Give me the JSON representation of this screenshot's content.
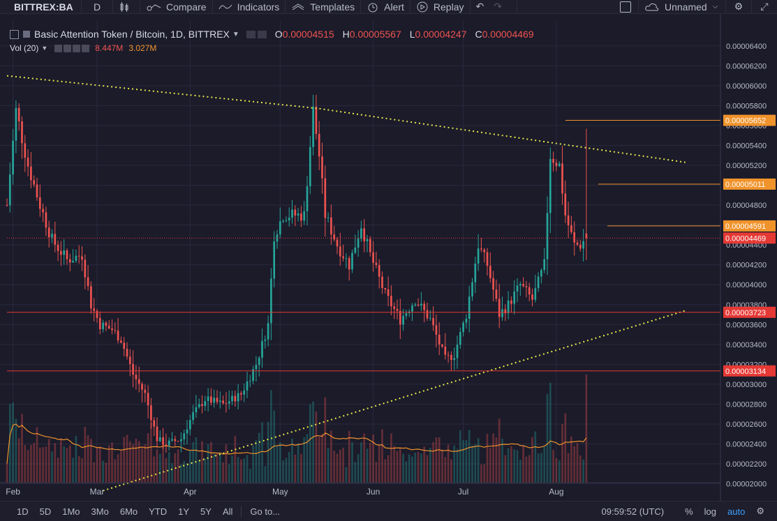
{
  "toolbar": {
    "symbol": "BITTREX:BA",
    "interval": "D",
    "compare_label": "Compare",
    "indicators_label": "Indicators",
    "templates_label": "Templates",
    "alert_label": "Alert",
    "replay_label": "Replay",
    "layout_name": "Unnamed"
  },
  "legend": {
    "title": "Basic Attention Token / Bitcoin, 1D, BITTREX",
    "o_label": "O",
    "o_value": "0.00004515",
    "h_label": "H",
    "h_value": "0.00005567",
    "l_label": "L",
    "l_value": "0.00004247",
    "c_label": "C",
    "c_value": "0.00004469",
    "vol_label": "Vol (20)",
    "vol_value": "8.447M",
    "vol_ma_value": "3.027M"
  },
  "bottombar": {
    "ranges": [
      "1D",
      "5D",
      "1Mo",
      "3Mo",
      "6Mo",
      "YTD",
      "1Y",
      "5Y",
      "All"
    ],
    "goto_label": "Go to...",
    "time": "09:59:52 (UTC)",
    "percent_label": "%",
    "log_label": "log",
    "auto_label": "auto"
  },
  "colors": {
    "background": "#1b1b2a",
    "grid": "#2a2a3e",
    "up": "#26a69a",
    "down": "#ef5350",
    "trendline": "#e8e84a",
    "horizontal_orange": "#f0932b",
    "horizontal_red": "#e53935",
    "volume_ma": "#f0932b"
  },
  "chart_data": {
    "type": "candlestick",
    "title": "Basic Attention Token / Bitcoin, 1D, BITTREX",
    "x_tick_labels": [
      "Feb",
      "Mar",
      "Apr",
      "May",
      "Jun",
      "Jul",
      "Aug"
    ],
    "y_tick_labels": [
      "0.00002000",
      "0.00002200",
      "0.00002400",
      "0.00002600",
      "0.00002800",
      "0.00003000",
      "0.00003200",
      "0.00003400",
      "0.00003600",
      "0.00003800",
      "0.00004000",
      "0.00004200",
      "0.00004400",
      "0.00004600",
      "0.00004800",
      "0.00005000",
      "0.00005200",
      "0.00005400",
      "0.00005600",
      "0.00005800",
      "0.00006000",
      "0.00006200",
      "0.00006400"
    ],
    "ylim": [
      1.92e-05,
      6.63e-05
    ],
    "xlim_days": [
      0,
      200
    ],
    "month_ticks_day": [
      2,
      30,
      61,
      91,
      122,
      152,
      183
    ],
    "close_anchors": [
      {
        "day": 0,
        "close": 4.8e-05
      },
      {
        "day": 3,
        "close": 5.75e-05
      },
      {
        "day": 7,
        "close": 5.2e-05
      },
      {
        "day": 11,
        "close": 4.8e-05
      },
      {
        "day": 15,
        "close": 4.45e-05
      },
      {
        "day": 20,
        "close": 4.25e-05
      },
      {
        "day": 25,
        "close": 4.3e-05
      },
      {
        "day": 28,
        "close": 3.8e-05
      },
      {
        "day": 31,
        "close": 3.6e-05
      },
      {
        "day": 35,
        "close": 3.55e-05
      },
      {
        "day": 38,
        "close": 3.45e-05
      },
      {
        "day": 42,
        "close": 3.1e-05
      },
      {
        "day": 46,
        "close": 2.9e-05
      },
      {
        "day": 50,
        "close": 2.45e-05
      },
      {
        "day": 53,
        "close": 2.4e-05
      },
      {
        "day": 58,
        "close": 2.45e-05
      },
      {
        "day": 62,
        "close": 2.7e-05
      },
      {
        "day": 66,
        "close": 2.85e-05
      },
      {
        "day": 72,
        "close": 2.8e-05
      },
      {
        "day": 78,
        "close": 2.9e-05
      },
      {
        "day": 83,
        "close": 3.2e-05
      },
      {
        "day": 87,
        "close": 3.6e-05
      },
      {
        "day": 89,
        "close": 4.5e-05
      },
      {
        "day": 92,
        "close": 4.7e-05
      },
      {
        "day": 95,
        "close": 4.7e-05
      },
      {
        "day": 99,
        "close": 4.7e-05
      },
      {
        "day": 102,
        "close": 5.75e-05
      },
      {
        "day": 104,
        "close": 5.3e-05
      },
      {
        "day": 106,
        "close": 4.7e-05
      },
      {
        "day": 110,
        "close": 4.4e-05
      },
      {
        "day": 114,
        "close": 4.2e-05
      },
      {
        "day": 118,
        "close": 4.6e-05
      },
      {
        "day": 121,
        "close": 4.3e-05
      },
      {
        "day": 126,
        "close": 3.9e-05
      },
      {
        "day": 131,
        "close": 3.65e-05
      },
      {
        "day": 136,
        "close": 3.85e-05
      },
      {
        "day": 141,
        "close": 3.65e-05
      },
      {
        "day": 146,
        "close": 3.25e-05
      },
      {
        "day": 149,
        "close": 3.3e-05
      },
      {
        "day": 153,
        "close": 3.7e-05
      },
      {
        "day": 157,
        "close": 4.4e-05
      },
      {
        "day": 160,
        "close": 4.2e-05
      },
      {
        "day": 164,
        "close": 3.7e-05
      },
      {
        "day": 167,
        "close": 3.8e-05
      },
      {
        "day": 171,
        "close": 4e-05
      },
      {
        "day": 175,
        "close": 3.85e-05
      },
      {
        "day": 179,
        "close": 4.2e-05
      },
      {
        "day": 181,
        "close": 5.3e-05
      },
      {
        "day": 184,
        "close": 5.2e-05
      },
      {
        "day": 186,
        "close": 4.7e-05
      },
      {
        "day": 189,
        "close": 4.4e-05
      },
      {
        "day": 191,
        "close": 4.4e-05
      },
      {
        "day": 193,
        "close": 4.47e-05
      }
    ],
    "last_candle": {
      "open": 4.515e-05,
      "high": 5.567e-05,
      "low": 4.247e-05,
      "close": 4.469e-05,
      "volume": "8.447M"
    },
    "price_labels": [
      {
        "value": "0.00005652",
        "price": 5.652e-05,
        "color": "orange"
      },
      {
        "value": "0.00005011",
        "price": 5.011e-05,
        "color": "orange"
      },
      {
        "value": "0.00004591",
        "price": 4.591e-05,
        "color": "orange"
      },
      {
        "value": "0.00004469",
        "price": 4.469e-05,
        "color": "red"
      },
      {
        "value": "0.00003723",
        "price": 3.723e-05,
        "color": "red"
      },
      {
        "value": "0.00003134",
        "price": 3.134e-05,
        "color": "red"
      }
    ],
    "horizontal_lines": [
      {
        "price": 5.652e-05,
        "color": "orange",
        "from_day": 186
      },
      {
        "price": 5.011e-05,
        "color": "orange",
        "from_day": 197
      },
      {
        "price": 4.591e-05,
        "color": "orange",
        "from_day": 200
      },
      {
        "price": 4.469e-05,
        "color": "red",
        "dashed": true,
        "from_day": 0
      },
      {
        "price": 3.723e-05,
        "color": "red",
        "from_day": 0
      },
      {
        "price": 3.134e-05,
        "color": "red",
        "from_day": 0
      }
    ],
    "trendlines": [
      {
        "style": "dotted",
        "color": "yellow",
        "points": [
          {
            "day": 0,
            "price": 6.1e-05
          },
          {
            "day": 104,
            "price": 5.77e-05
          },
          {
            "day": 226,
            "price": 5.23e-05
          }
        ]
      },
      {
        "style": "dotted",
        "color": "yellow",
        "points": [
          {
            "day": 32,
            "price": 1.93e-05
          },
          {
            "day": 146,
            "price": 3e-05
          },
          {
            "day": 226,
            "price": 3.74e-05
          }
        ]
      }
    ],
    "volume": {
      "ma_label": "Vol (20)",
      "last_volume": "8.447M",
      "ma_value": "3.027M"
    }
  }
}
